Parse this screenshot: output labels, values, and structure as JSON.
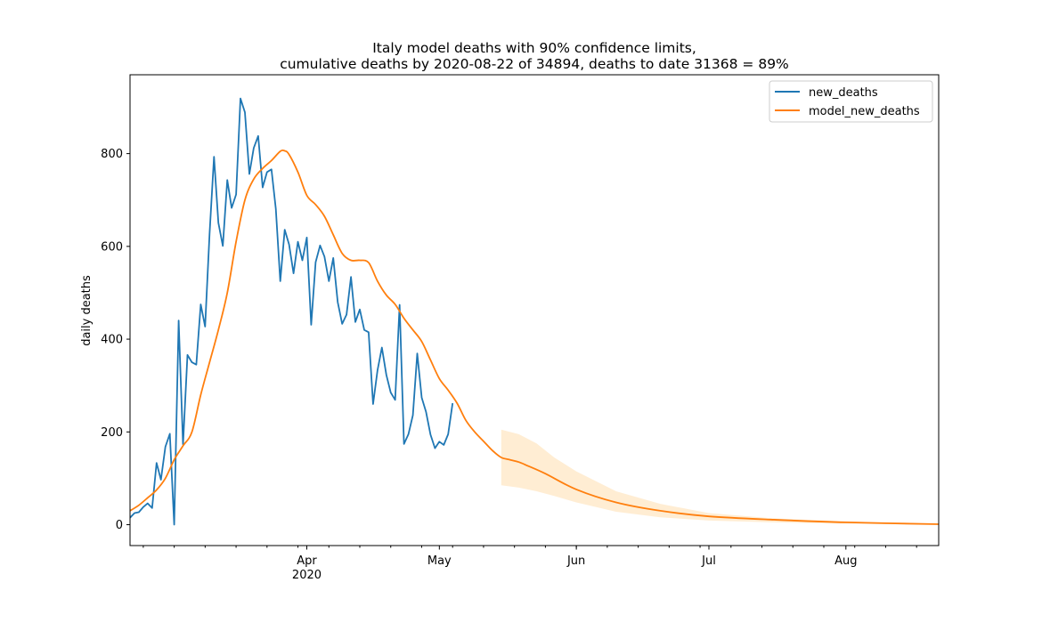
{
  "chart_data": {
    "type": "line",
    "title_line1": "Italy model deaths with 90% confidence limits,",
    "title_line2": "cumulative deaths by 2020-08-22 of 34894, deaths to date 31368 = 89%",
    "xlabel": "",
    "ylabel": "daily deaths",
    "x_start": "2020-02-21",
    "x_end": "2020-08-22",
    "ylim": [
      -45,
      970
    ],
    "yticks": [
      0,
      200,
      400,
      600,
      800
    ],
    "xticks": [
      {
        "date": "2020-04-01",
        "label": "Apr",
        "sublabel": "2020"
      },
      {
        "date": "2020-05-01",
        "label": "May",
        "sublabel": ""
      },
      {
        "date": "2020-06-01",
        "label": "Jun",
        "sublabel": ""
      },
      {
        "date": "2020-07-01",
        "label": "Jul",
        "sublabel": ""
      },
      {
        "date": "2020-08-01",
        "label": "Aug",
        "sublabel": ""
      }
    ],
    "legend_position": "top-right",
    "series": [
      {
        "name": "new_deaths",
        "color": "#1f77b4",
        "x_start": "2020-02-21",
        "values": [
          15,
          25,
          27,
          38,
          46,
          36,
          133,
          97,
          168,
          196,
          0,
          440,
          173,
          366,
          350,
          345,
          475,
          427,
          627,
          793,
          651,
          601,
          743,
          683,
          712,
          919,
          889,
          756,
          812,
          838,
          727,
          760,
          766,
          681,
          525,
          636,
          604,
          542,
          610,
          570,
          619,
          431,
          566,
          602,
          578,
          525,
          575,
          480,
          433,
          453,
          534,
          437,
          464,
          420,
          415,
          260,
          333,
          382,
          323,
          285,
          269,
          474,
          174,
          195,
          236,
          369,
          274,
          243,
          194,
          165,
          179,
          172,
          195,
          262
        ]
      },
      {
        "name": "model_new_deaths",
        "color": "#ff7f0e",
        "keypoints": [
          [
            "2020-02-21",
            30
          ],
          [
            "2020-02-23",
            42
          ],
          [
            "2020-02-25",
            58
          ],
          [
            "2020-02-27",
            75
          ],
          [
            "2020-02-29",
            100
          ],
          [
            "2020-03-02",
            140
          ],
          [
            "2020-03-04",
            170
          ],
          [
            "2020-03-06",
            200
          ],
          [
            "2020-03-08",
            280
          ],
          [
            "2020-03-10",
            350
          ],
          [
            "2020-03-12",
            420
          ],
          [
            "2020-03-14",
            500
          ],
          [
            "2020-03-16",
            610
          ],
          [
            "2020-03-18",
            700
          ],
          [
            "2020-03-20",
            745
          ],
          [
            "2020-03-22",
            768
          ],
          [
            "2020-03-24",
            785
          ],
          [
            "2020-03-26",
            805
          ],
          [
            "2020-03-27",
            806
          ],
          [
            "2020-03-28",
            798
          ],
          [
            "2020-03-30",
            760
          ],
          [
            "2020-04-01",
            710
          ],
          [
            "2020-04-03",
            690
          ],
          [
            "2020-04-05",
            665
          ],
          [
            "2020-04-07",
            625
          ],
          [
            "2020-04-09",
            585
          ],
          [
            "2020-04-11",
            570
          ],
          [
            "2020-04-13",
            570
          ],
          [
            "2020-04-15",
            565
          ],
          [
            "2020-04-17",
            525
          ],
          [
            "2020-04-19",
            495
          ],
          [
            "2020-04-21",
            475
          ],
          [
            "2020-04-23",
            445
          ],
          [
            "2020-04-25",
            420
          ],
          [
            "2020-04-27",
            395
          ],
          [
            "2020-04-29",
            355
          ],
          [
            "2020-05-01",
            315
          ],
          [
            "2020-05-03",
            290
          ],
          [
            "2020-05-05",
            262
          ],
          [
            "2020-05-07",
            225
          ],
          [
            "2020-05-09",
            200
          ],
          [
            "2020-05-11",
            180
          ],
          [
            "2020-05-13",
            160
          ],
          [
            "2020-05-15",
            145
          ],
          [
            "2020-05-17",
            140
          ],
          [
            "2020-05-19",
            135
          ],
          [
            "2020-05-21",
            127
          ],
          [
            "2020-05-25",
            110
          ],
          [
            "2020-06-01",
            76
          ],
          [
            "2020-06-10",
            48
          ],
          [
            "2020-06-20",
            30
          ],
          [
            "2020-07-01",
            18
          ],
          [
            "2020-07-15",
            11
          ],
          [
            "2020-08-01",
            5
          ],
          [
            "2020-08-22",
            1
          ]
        ]
      }
    ],
    "confidence_band": {
      "color": "#ffe9c8",
      "upper": [
        [
          "2020-05-15",
          205
        ],
        [
          "2020-05-19",
          195
        ],
        [
          "2020-05-23",
          175
        ],
        [
          "2020-05-27",
          145
        ],
        [
          "2020-06-01",
          115
        ],
        [
          "2020-06-10",
          72
        ],
        [
          "2020-06-20",
          45
        ],
        [
          "2020-07-01",
          25
        ],
        [
          "2020-07-15",
          14
        ],
        [
          "2020-08-01",
          7
        ],
        [
          "2020-08-22",
          2
        ]
      ],
      "lower": [
        [
          "2020-05-15",
          85
        ],
        [
          "2020-05-19",
          80
        ],
        [
          "2020-05-23",
          72
        ],
        [
          "2020-05-27",
          62
        ],
        [
          "2020-06-01",
          48
        ],
        [
          "2020-06-10",
          28
        ],
        [
          "2020-06-20",
          16
        ],
        [
          "2020-07-01",
          9
        ],
        [
          "2020-07-15",
          5
        ],
        [
          "2020-08-01",
          2
        ],
        [
          "2020-08-22",
          0
        ]
      ]
    }
  }
}
